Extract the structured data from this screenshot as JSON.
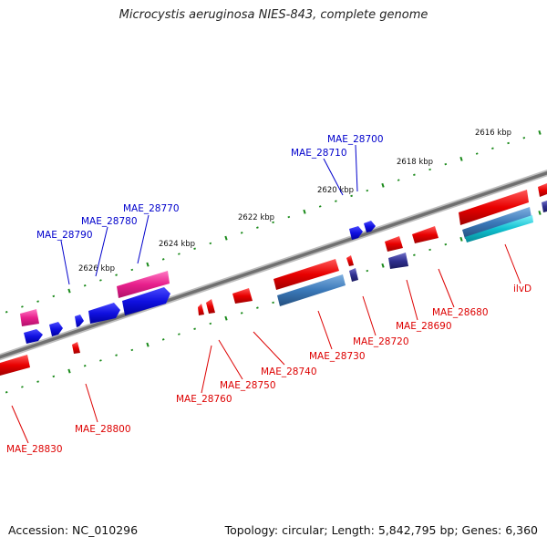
{
  "title": "Microcystis aeruginosa NIES-843, complete genome",
  "footer": {
    "accession": "Accession: NC_010296",
    "summary": "Topology: circular; Length: 5,842,795 bp; Genes: 6,360"
  },
  "colors": {
    "backbone": "#7a7a7a",
    "tick": "#1a8a1a",
    "forward_gene_label": "#0000cc",
    "reverse_gene_label": "#dd0000",
    "gene_red": "#e80000",
    "gene_blue": "#1010e0",
    "gene_pink": "#e8208c",
    "gene_steel": "#3a78b8",
    "gene_cyan": "#10c0d0",
    "gene_navy": "#303090"
  },
  "ruler_labels": [
    "2616 kbp",
    "2618 kbp",
    "2620 kbp",
    "2622 kbp",
    "2624 kbp",
    "2626 kbp"
  ],
  "gene_labels": {
    "forward": [
      "MAE_28700",
      "MAE_28710",
      "MAE_28770",
      "MAE_28780",
      "MAE_28790"
    ],
    "reverse": [
      "ilvD",
      "MAE_28680",
      "MAE_28690",
      "MAE_28720",
      "MAE_28730",
      "MAE_28740",
      "MAE_28750",
      "MAE_28760",
      "MAE_28800",
      "MAE_28830"
    ]
  }
}
